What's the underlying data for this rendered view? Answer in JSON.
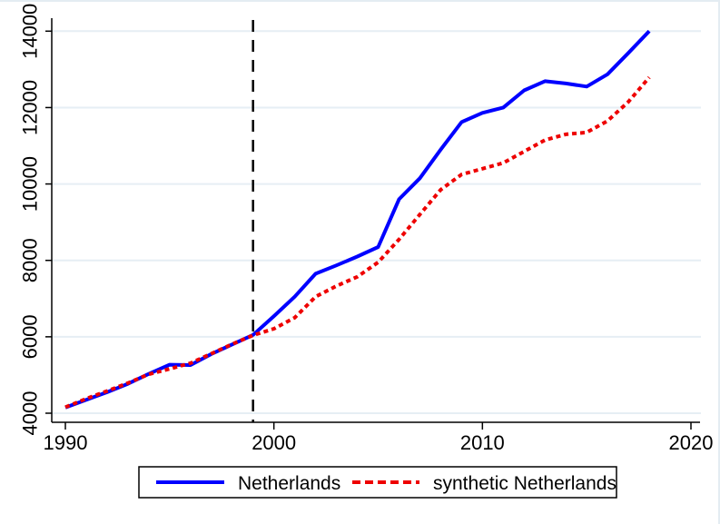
{
  "title": "",
  "colors": {
    "netherlands_line": "#0000ff",
    "synthetic_line": "#ee0000",
    "vline": "#000000",
    "grid": "#e6eef4",
    "axis": "#000000",
    "canvas_border": "#e4ecf2",
    "legend_border": "#000000",
    "background": "#ffffff"
  },
  "chart_data": {
    "type": "line",
    "title": "",
    "xlabel": "",
    "ylabel": "",
    "x": [
      1990,
      1991,
      1992,
      1993,
      1994,
      1995,
      1996,
      1997,
      1998,
      1999,
      2000,
      2001,
      2002,
      2003,
      2004,
      2005,
      2006,
      2007,
      2008,
      2009,
      2010,
      2011,
      2012,
      2013,
      2014,
      2015,
      2016,
      2017,
      2018
    ],
    "series": [
      {
        "name": "Netherlands",
        "color": "#0000ff",
        "style": "solid",
        "values": [
          4150,
          4350,
          4550,
          4770,
          5030,
          5270,
          5260,
          5550,
          5800,
          6050,
          6540,
          7050,
          7650,
          7870,
          8100,
          8350,
          9600,
          10150,
          10900,
          11620,
          11860,
          12000,
          12450,
          12690,
          12630,
          12550,
          12870,
          13430,
          14000
        ]
      },
      {
        "name": "synthetic Netherlands",
        "color": "#ee0000",
        "style": "dotted",
        "values": [
          4160,
          4380,
          4580,
          4790,
          5020,
          5160,
          5310,
          5560,
          5810,
          6040,
          6210,
          6500,
          7050,
          7330,
          7570,
          7950,
          8550,
          9200,
          9850,
          10250,
          10400,
          10550,
          10850,
          11150,
          11300,
          11350,
          11650,
          12150,
          12790
        ]
      }
    ],
    "vline": {
      "x": 1999,
      "style": "dashed",
      "color": "#000000"
    },
    "xticks": [
      1990,
      2000,
      2010,
      2020
    ],
    "yticks": [
      4000,
      6000,
      8000,
      10000,
      12000,
      14000
    ],
    "xlim": [
      1989.3,
      2020.4
    ],
    "ylim": [
      4000,
      14000
    ],
    "grid": true,
    "legend_position": "bottom-center"
  }
}
